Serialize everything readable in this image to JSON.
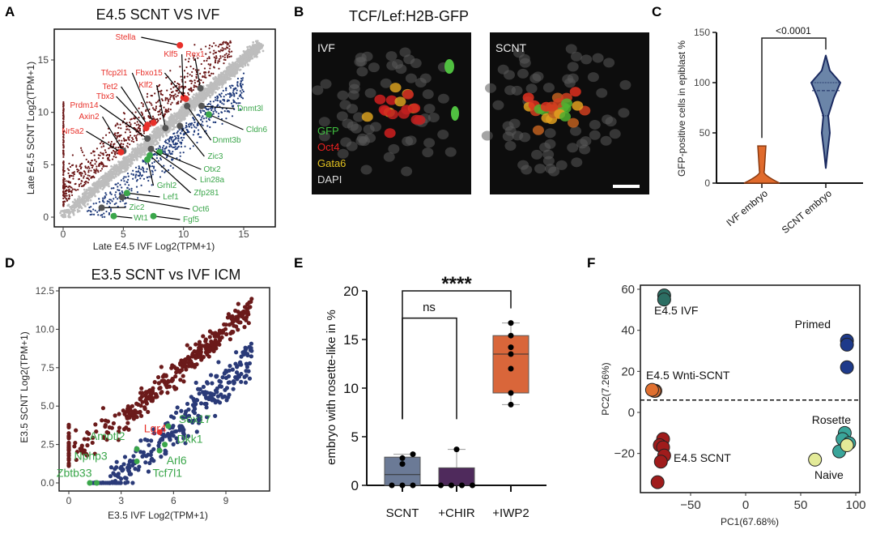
{
  "panels": {
    "A": "A",
    "B": "B",
    "C": "C",
    "D": "D",
    "E": "E",
    "F": "F"
  },
  "colors": {
    "up": "#e8302a",
    "up_cloud": "#6b1616",
    "down_cloud": "#1f3a7a",
    "neutral": "#bdbdbd",
    "down": "#3aa64a",
    "gray_marker": "#555555"
  },
  "micrograph": {
    "title": "TCF/Lef:H2B-GFP",
    "left_label": "IVF",
    "right_label": "SCNT",
    "legend": [
      {
        "label": "GFP",
        "color": "#3fbf3f"
      },
      {
        "label": "Oct4",
        "color": "#e82020"
      },
      {
        "label": "Gata6",
        "color": "#e0c020"
      },
      {
        "label": "DAPI",
        "color": "#dddddd"
      }
    ]
  },
  "chart_data": [
    {
      "id": "A",
      "type": "scatter",
      "title": "E4.5 SCNT VS IVF",
      "xlabel": "Late E4.5 IVF Log2(TPM+1)",
      "ylabel": "Late E4.5 SCNT  Log2(TPM+1)",
      "xlim": [
        -0.5,
        17.5
      ],
      "ylim": [
        -0.8,
        17.5
      ],
      "xticks": [
        0,
        5,
        10,
        15
      ],
      "yticks": [
        0,
        5,
        10,
        15
      ],
      "labeled_points": [
        {
          "gene": "Stella",
          "x": 9.7,
          "y": 16.4,
          "group": "up",
          "marker": "up"
        },
        {
          "gene": "Klf5",
          "x": 10.0,
          "y": 11.4,
          "group": "up",
          "marker": "up"
        },
        {
          "gene": "Rex1",
          "x": 11.4,
          "y": 12.3,
          "group": "up",
          "marker": "gray"
        },
        {
          "gene": "Fbxo15",
          "x": 10.2,
          "y": 11.3,
          "group": "up",
          "marker": "up"
        },
        {
          "gene": "Klf2",
          "x": 8.5,
          "y": 8.5,
          "group": "up",
          "marker": "gray"
        },
        {
          "gene": "Tfcp2l1",
          "x": 7.5,
          "y": 9.0,
          "group": "up",
          "marker": "up"
        },
        {
          "gene": "Tet2",
          "x": 7.0,
          "y": 8.8,
          "group": "up",
          "marker": "up"
        },
        {
          "gene": "Tbx3",
          "x": 6.9,
          "y": 8.5,
          "group": "up",
          "marker": "up"
        },
        {
          "gene": "Prdm14",
          "x": 7.0,
          "y": 7.5,
          "group": "up",
          "marker": "gray"
        },
        {
          "gene": "Axin2",
          "x": 5.0,
          "y": 6.3,
          "group": "up",
          "marker": "gray"
        },
        {
          "gene": "Nr5a2",
          "x": 4.8,
          "y": 6.2,
          "group": "up",
          "marker": "up"
        },
        {
          "gene": "Dnmt3l",
          "x": 11.5,
          "y": 10.6,
          "group": "down",
          "marker": "gray"
        },
        {
          "gene": "Cldn6",
          "x": 12.1,
          "y": 9.8,
          "group": "down",
          "marker": "down"
        },
        {
          "gene": "Dnmt3b",
          "x": 10.3,
          "y": 10.6,
          "group": "down",
          "marker": "gray"
        },
        {
          "gene": "Zic3",
          "x": 9.7,
          "y": 8.7,
          "group": "down",
          "marker": "gray"
        },
        {
          "gene": "Otx2",
          "x": 8.0,
          "y": 6.2,
          "group": "down",
          "marker": "down"
        },
        {
          "gene": "Lin28a",
          "x": 7.3,
          "y": 6.5,
          "group": "down",
          "marker": "gray"
        },
        {
          "gene": "Zfp281",
          "x": 7.2,
          "y": 5.9,
          "group": "down",
          "marker": "down"
        },
        {
          "gene": "Grhl2",
          "x": 7.0,
          "y": 5.5,
          "group": "down",
          "marker": "down"
        },
        {
          "gene": "Lef1",
          "x": 5.3,
          "y": 2.3,
          "group": "down",
          "marker": "down"
        },
        {
          "gene": "Oct6",
          "x": 4.9,
          "y": 1.9,
          "group": "down",
          "marker": "gray"
        },
        {
          "gene": "Zic2",
          "x": 3.2,
          "y": 0.9,
          "group": "down",
          "marker": "gray"
        },
        {
          "gene": "Wt1",
          "x": 4.2,
          "y": 0.1,
          "group": "down",
          "marker": "down"
        },
        {
          "gene": "Fgf5",
          "x": 7.5,
          "y": 0.1,
          "group": "down",
          "marker": "down"
        }
      ]
    },
    {
      "id": "C",
      "type": "violin",
      "ylabel": "GFP-positive cells in epiblast %",
      "ylim": [
        0,
        150
      ],
      "yticks": [
        0,
        50,
        100,
        150
      ],
      "categories": [
        "IVF embryo",
        "SCNT embryo"
      ],
      "series": [
        {
          "category": "IVF embryo",
          "min": 0,
          "max": 37,
          "color": "#e06a2c"
        },
        {
          "category": "SCNT embryo",
          "min": 15,
          "max": 127,
          "q1": 67,
          "median": 92,
          "q3": 100,
          "color": "#6b85a8"
        }
      ],
      "annotation": "<0.0001"
    },
    {
      "id": "D",
      "type": "scatter",
      "title": "E3.5 SCNT vs IVF ICM",
      "xlabel": "E3.5 IVF Log2(TPM+1)",
      "ylabel": "E3.5 SCNT Log2(TPM+1)",
      "xlim": [
        -0.6,
        11.4
      ],
      "ylim": [
        -0.5,
        12.8
      ],
      "xticks": [
        0,
        3,
        6,
        9
      ],
      "yticks": [
        "0.0",
        "2.5",
        "5.0",
        "7.5",
        "10.0",
        "12.5"
      ],
      "labeled_points": [
        {
          "gene": "Lgr4",
          "x": 5.2,
          "y": 3.3,
          "group": "up"
        },
        {
          "gene": "Sox17",
          "x": 5.7,
          "y": 3.7,
          "group": "down"
        },
        {
          "gene": "Dkk1",
          "x": 5.5,
          "y": 2.5,
          "group": "down"
        },
        {
          "gene": "Arl6",
          "x": 5.2,
          "y": 2.1,
          "group": "down"
        },
        {
          "gene": "Amotl2",
          "x": 3.9,
          "y": 2.2,
          "group": "down"
        },
        {
          "gene": "Nphp3",
          "x": 3.9,
          "y": 1.4,
          "group": "down"
        },
        {
          "gene": "Tcf7l1",
          "x": 1.6,
          "y": 0.0,
          "group": "down"
        },
        {
          "gene": "Zbtb33",
          "x": 1.2,
          "y": 0.0,
          "group": "down"
        }
      ]
    },
    {
      "id": "E",
      "type": "box",
      "ylabel": "embryo with rosette-like in %",
      "ylim": [
        0,
        20
      ],
      "yticks": [
        0,
        5,
        10,
        15,
        20
      ],
      "categories": [
        "SCNT",
        "+CHIR",
        "+IWP2"
      ],
      "series": [
        {
          "category": "SCNT",
          "points": [
            0,
            0,
            0,
            2.2,
            2.8,
            3.2
          ],
          "q1": 0,
          "median": 1.1,
          "q3": 2.9,
          "min": 0,
          "max": 3.2,
          "color": "#6b7a96"
        },
        {
          "category": "+CHIR",
          "points": [
            0,
            0,
            0,
            0,
            3.7
          ],
          "q1": 0,
          "median": 0,
          "q3": 1.8,
          "min": 0,
          "max": 3.7,
          "color": "#4f2a5c"
        },
        {
          "category": "+IWP2",
          "points": [
            8.3,
            9.5,
            12.0,
            13.5,
            14.2,
            15.4,
            16.7
          ],
          "q1": 9.5,
          "median": 13.5,
          "q3": 15.4,
          "min": 8.3,
          "max": 16.7,
          "color": "#d9663a"
        }
      ],
      "comparisons": [
        {
          "from": "SCNT",
          "to": "+CHIR",
          "label": "ns"
        },
        {
          "from": "SCNT",
          "to": "+IWP2",
          "label": "****"
        }
      ]
    },
    {
      "id": "F",
      "type": "scatter",
      "xlabel": "PC1(67.68%)",
      "ylabel": "PC2(7.26%)",
      "xlim": [
        -93,
        103
      ],
      "ylim": [
        -38,
        62
      ],
      "xticks": [
        "−50",
        "0",
        "50",
        "100"
      ],
      "yticks": [
        "−20",
        "0",
        "20",
        "40",
        "60"
      ],
      "threshold_y": 6,
      "series": [
        {
          "name": "E4.5 IVF",
          "color": "#2c6e63",
          "points": [
            [
              -74,
              57
            ],
            [
              -74,
              55
            ]
          ]
        },
        {
          "name": "Primed",
          "color": "#1e3a8a",
          "points": [
            [
              92,
              35
            ],
            [
              92,
              33
            ],
            [
              92,
              22
            ]
          ]
        },
        {
          "name": "E4.5 Wnti-SCNT",
          "color": "#e07030",
          "points": [
            [
              -82,
              10.5
            ],
            [
              -83,
              10.5
            ],
            [
              -85,
              11
            ]
          ]
        },
        {
          "name": "E4.5 SCNT",
          "color": "#a01c1c",
          "points": [
            [
              -75,
              -13
            ],
            [
              -78,
              -16
            ],
            [
              -75,
              -17
            ],
            [
              -74,
              -21
            ],
            [
              -77,
              -24
            ],
            [
              -80,
              -34
            ]
          ]
        },
        {
          "name": "Rosette",
          "color": "#3aa59a",
          "points": [
            [
              90,
              -10
            ],
            [
              88,
              -13
            ],
            [
              94,
              -15
            ],
            [
              85,
              -19
            ]
          ]
        },
        {
          "name": "Naive",
          "color": "#e3ea98",
          "points": [
            [
              63,
              -23
            ],
            [
              92,
              -16
            ]
          ]
        }
      ]
    }
  ]
}
